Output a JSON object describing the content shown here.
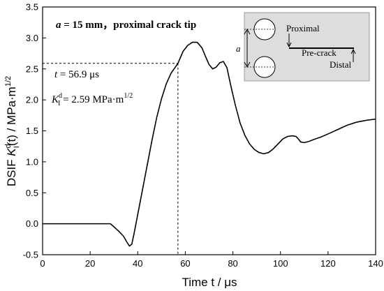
{
  "chart_data": {
    "type": "line",
    "xlabel": "Time t / μs",
    "ylabel_parts": {
      "prefix": "DSIF ",
      "k": "K",
      "k_sub": "I",
      "k_sup": "d",
      "suffix": "(t) / MPa·m",
      "suffix_sup": "1/2"
    },
    "xlim": [
      0,
      140
    ],
    "ylim": [
      -0.5,
      3.5
    ],
    "xticks": [
      0,
      20,
      40,
      60,
      80,
      100,
      120,
      140
    ],
    "yticks": [
      -0.5,
      0.0,
      0.5,
      1.0,
      1.5,
      2.0,
      2.5,
      3.0,
      3.5
    ],
    "ytick_labels": [
      "-0.5",
      "0.0",
      "0.5",
      "1.0",
      "1.5",
      "2.0",
      "2.5",
      "3.0",
      "3.5"
    ],
    "grid": false,
    "series": [
      {
        "color": "#000000",
        "x": [
          0,
          10,
          20,
          28.5,
          30,
          32,
          34,
          35.5,
          36.5,
          37.5,
          38.5,
          40,
          42,
          44,
          46,
          48,
          50,
          52,
          54,
          56.9,
          59,
          61,
          63,
          65,
          67,
          68.5,
          70,
          71.5,
          73,
          74.5,
          76,
          77.5,
          79,
          81,
          83,
          85,
          87,
          89,
          91,
          93,
          95,
          97,
          99,
          101,
          103,
          105,
          106.5,
          107.5,
          108.5,
          110,
          112,
          114,
          117,
          120,
          124,
          128,
          132,
          136,
          140
        ],
        "y": [
          0.0,
          0.0,
          0.0,
          0.0,
          -0.05,
          -0.12,
          -0.2,
          -0.3,
          -0.36,
          -0.33,
          -0.15,
          0.15,
          0.55,
          0.95,
          1.35,
          1.72,
          2.02,
          2.26,
          2.43,
          2.59,
          2.78,
          2.88,
          2.93,
          2.93,
          2.84,
          2.7,
          2.57,
          2.5,
          2.53,
          2.6,
          2.62,
          2.52,
          2.25,
          1.92,
          1.63,
          1.43,
          1.29,
          1.2,
          1.15,
          1.13,
          1.15,
          1.21,
          1.29,
          1.37,
          1.41,
          1.42,
          1.41,
          1.37,
          1.32,
          1.31,
          1.33,
          1.36,
          1.4,
          1.45,
          1.52,
          1.59,
          1.64,
          1.67,
          1.69
        ]
      }
    ],
    "marker": {
      "x": 56.9,
      "y": 2.59
    },
    "annotations": {
      "title": {
        "a": "a",
        "rest": " = 15 mm，proximal crack tip"
      },
      "time": {
        "t": "t",
        "rest": " = 56.9 μs"
      },
      "dsif": {
        "k": "K",
        "sub": "I",
        "sup": "d",
        "rest": " = 2.59 MPa·m",
        "rest_sup": "1/2"
      }
    },
    "inset": {
      "label_a": "a",
      "label_proximal": "Proximal",
      "label_precrack": "Pre-crack",
      "label_distal": "Distal",
      "background": "#dddddd"
    }
  }
}
